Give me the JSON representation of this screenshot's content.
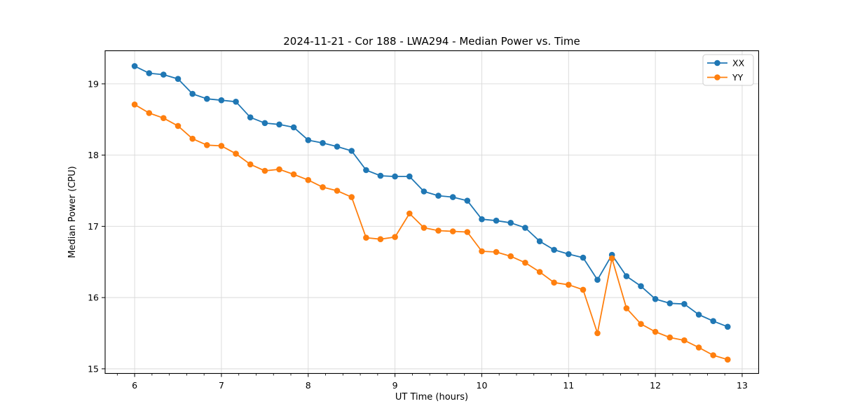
{
  "chart_data": {
    "type": "line",
    "title": "2024-11-21 - Cor 188 - LWA294 - Median Power vs. Time",
    "xlabel": "UT Time (hours)",
    "ylabel": "Median Power (CPU)",
    "xlim": [
      5.66,
      13.19
    ],
    "ylim": [
      14.935,
      19.465
    ],
    "x_ticks": [
      6,
      7,
      8,
      9,
      10,
      11,
      12,
      13
    ],
    "x_tick_labels": [
      "6",
      "7",
      "8",
      "9",
      "10",
      "11",
      "12",
      "13"
    ],
    "y_ticks": [
      15,
      16,
      17,
      18,
      19
    ],
    "y_tick_labels": [
      "15",
      "16",
      "17",
      "18",
      "19"
    ],
    "x_minor_step": 0.2,
    "grid": true,
    "grid_color": "#d9d9d9",
    "axis_color": "#000000",
    "legend_position": "upper right",
    "legend_border_color": "#cccccc",
    "marker": "circle",
    "x": [
      6.0,
      6.167,
      6.333,
      6.5,
      6.667,
      6.833,
      7.0,
      7.167,
      7.333,
      7.5,
      7.667,
      7.833,
      8.0,
      8.167,
      8.333,
      8.5,
      8.667,
      8.833,
      9.0,
      9.167,
      9.333,
      9.5,
      9.667,
      9.833,
      10.0,
      10.167,
      10.333,
      10.5,
      10.667,
      10.833,
      11.0,
      11.167,
      11.333,
      11.5,
      11.667,
      11.833,
      12.0,
      12.167,
      12.333,
      12.5,
      12.667,
      12.833
    ],
    "series": [
      {
        "name": "XX",
        "color": "#1f77b4",
        "values": [
          19.25,
          19.15,
          19.13,
          19.07,
          18.86,
          18.79,
          18.77,
          18.75,
          18.53,
          18.45,
          18.43,
          18.39,
          18.21,
          18.17,
          18.12,
          18.06,
          17.79,
          17.71,
          17.7,
          17.7,
          17.49,
          17.43,
          17.41,
          17.36,
          17.1,
          17.08,
          17.05,
          16.98,
          16.79,
          16.67,
          16.61,
          16.56,
          16.25,
          16.6,
          16.3,
          16.16,
          15.98,
          15.92,
          15.91,
          15.76,
          15.67,
          15.59
        ]
      },
      {
        "name": "YY",
        "color": "#ff7f0e",
        "values": [
          18.71,
          18.59,
          18.52,
          18.41,
          18.23,
          18.14,
          18.13,
          18.02,
          17.87,
          17.78,
          17.8,
          17.73,
          17.65,
          17.55,
          17.5,
          17.41,
          16.84,
          16.82,
          16.85,
          17.18,
          16.98,
          16.94,
          16.93,
          16.92,
          16.65,
          16.64,
          16.58,
          16.49,
          16.36,
          16.21,
          16.18,
          16.11,
          15.5,
          16.55,
          15.85,
          15.63,
          15.52,
          15.44,
          15.4,
          15.3,
          15.19,
          15.13
        ]
      }
    ]
  }
}
